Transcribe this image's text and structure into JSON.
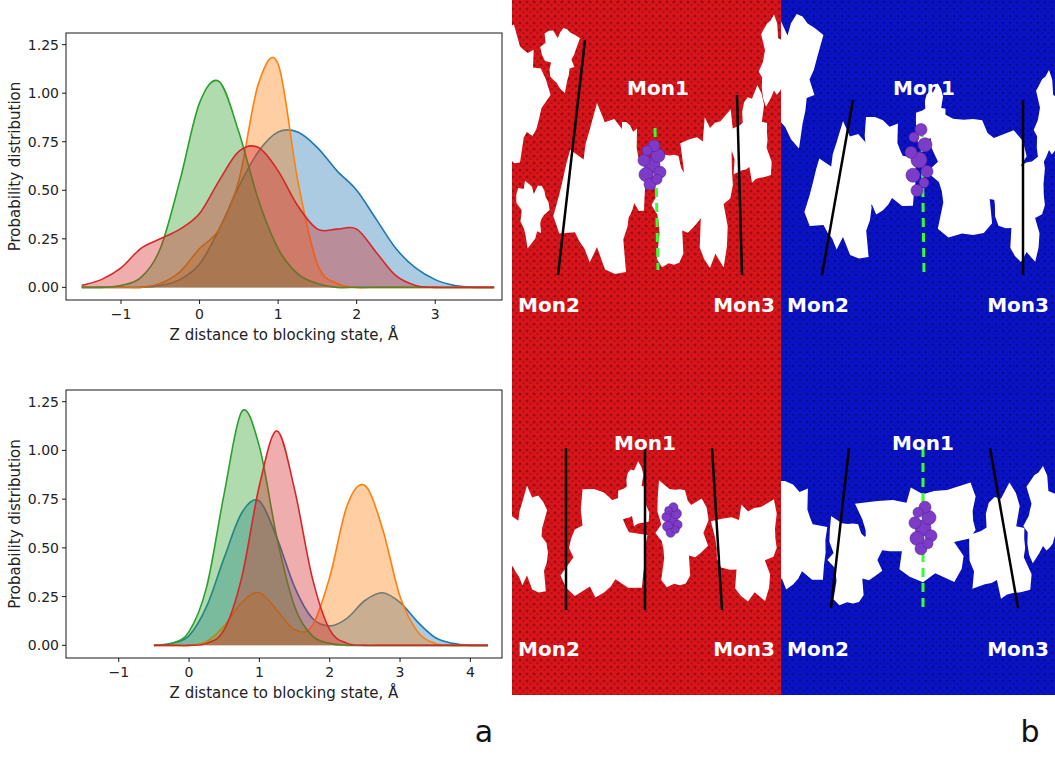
{
  "chart_data": [
    {
      "type": "area",
      "x_label": "Z distance to blocking state, Å",
      "y_label": "Probability distribution",
      "xlim": [
        -1.7,
        3.85
      ],
      "ylim": [
        -0.065,
        1.31
      ],
      "xticks": [
        {
          "value": -1,
          "label": "−1"
        },
        0,
        1,
        2,
        3
      ],
      "yticks": [
        {
          "value": 0,
          "label": "0.00"
        },
        {
          "value": 0.25,
          "label": "0.25"
        },
        {
          "value": 0.5,
          "label": "0.50"
        },
        {
          "value": 0.75,
          "label": "0.75"
        },
        {
          "value": 1,
          "label": "1.00"
        },
        {
          "value": 1.25,
          "label": "1.25"
        }
      ],
      "grid": false,
      "x": [
        -1.5,
        -1.25,
        -1,
        -0.75,
        -0.5,
        -0.25,
        0,
        0.25,
        0.5,
        0.75,
        1,
        1.25,
        1.5,
        1.75,
        2,
        2.25,
        2.5,
        2.75,
        3,
        3.25,
        3.5,
        3.75
      ],
      "series": [
        {
          "color": "#1f77b4",
          "values": [
            0,
            0,
            0,
            0,
            0.01,
            0.04,
            0.12,
            0.3,
            0.52,
            0.7,
            0.8,
            0.8,
            0.72,
            0.6,
            0.5,
            0.35,
            0.2,
            0.1,
            0.04,
            0.01,
            0,
            0
          ]
        },
        {
          "color": "#ff7f0e",
          "values": [
            0,
            0,
            0,
            0,
            0.02,
            0.08,
            0.2,
            0.3,
            0.55,
            1.05,
            1.15,
            0.55,
            0.12,
            0.02,
            0,
            0,
            0,
            0,
            0,
            0,
            0,
            0
          ]
        },
        {
          "color": "#2ca02c",
          "values": [
            0,
            0,
            0.01,
            0.05,
            0.2,
            0.55,
            0.95,
            1.06,
            0.8,
            0.45,
            0.2,
            0.07,
            0.02,
            0,
            0,
            0,
            0,
            0,
            0,
            0,
            0,
            0
          ]
        },
        {
          "color": "#d62728",
          "values": [
            0.01,
            0.04,
            0.1,
            0.2,
            0.25,
            0.3,
            0.38,
            0.55,
            0.7,
            0.72,
            0.6,
            0.42,
            0.3,
            0.3,
            0.3,
            0.18,
            0.06,
            0.01,
            0,
            0,
            0,
            0
          ]
        }
      ]
    },
    {
      "type": "area",
      "x_label": "Z distance to blocking state, Å",
      "y_label": "Probability distribution",
      "xlim": [
        -1.75,
        4.45
      ],
      "ylim": [
        -0.065,
        1.31
      ],
      "xticks": [
        {
          "value": -1,
          "label": "−1"
        },
        0,
        1,
        2,
        3,
        4
      ],
      "yticks": [
        {
          "value": 0,
          "label": "0.00"
        },
        {
          "value": 0.25,
          "label": "0.25"
        },
        {
          "value": 0.5,
          "label": "0.50"
        },
        {
          "value": 0.75,
          "label": "0.75"
        },
        {
          "value": 1,
          "label": "1.00"
        },
        {
          "value": 1.25,
          "label": "1.25"
        }
      ],
      "grid": false,
      "x": [
        -0.5,
        -0.25,
        0,
        0.25,
        0.5,
        0.75,
        1,
        1.25,
        1.5,
        1.75,
        2,
        2.25,
        2.5,
        2.75,
        3,
        3.25,
        3.5,
        3.75,
        4,
        4.25
      ],
      "series": [
        {
          "color": "#1f77b4",
          "values": [
            0,
            0.01,
            0.05,
            0.2,
            0.45,
            0.68,
            0.74,
            0.55,
            0.3,
            0.14,
            0.1,
            0.14,
            0.23,
            0.27,
            0.22,
            0.12,
            0.04,
            0.01,
            0,
            0
          ]
        },
        {
          "color": "#ff7f0e",
          "values": [
            0,
            0,
            0,
            0.02,
            0.1,
            0.22,
            0.27,
            0.18,
            0.08,
            0.1,
            0.35,
            0.72,
            0.82,
            0.6,
            0.25,
            0.07,
            0.01,
            0,
            0,
            0
          ]
        },
        {
          "color": "#2ca02c",
          "values": [
            0,
            0.01,
            0.07,
            0.3,
            0.78,
            1.2,
            1.02,
            0.55,
            0.2,
            0.05,
            0.01,
            0,
            0,
            0,
            0,
            0,
            0,
            0,
            0,
            0
          ]
        },
        {
          "color": "#d62728",
          "values": [
            0,
            0,
            0,
            0.01,
            0.08,
            0.35,
            0.82,
            1.1,
            0.8,
            0.35,
            0.08,
            0.01,
            0,
            0,
            0,
            0,
            0,
            0,
            0,
            0
          ]
        }
      ]
    }
  ],
  "panel_b": {
    "images": [
      {
        "color": "#d9141a",
        "labels": [
          "Mon1",
          "Mon2",
          "Mon3"
        ]
      },
      {
        "color": "#0a12c8",
        "labels": [
          "Mon1",
          "Mon2",
          "Mon3"
        ]
      },
      {
        "color": "#d9141a",
        "labels": [
          "Mon1",
          "Mon2",
          "Mon3"
        ]
      },
      {
        "color": "#0a12c8",
        "labels": [
          "Mon1",
          "Mon2",
          "Mon3"
        ]
      }
    ]
  },
  "panel_labels": [
    "a",
    "b"
  ]
}
